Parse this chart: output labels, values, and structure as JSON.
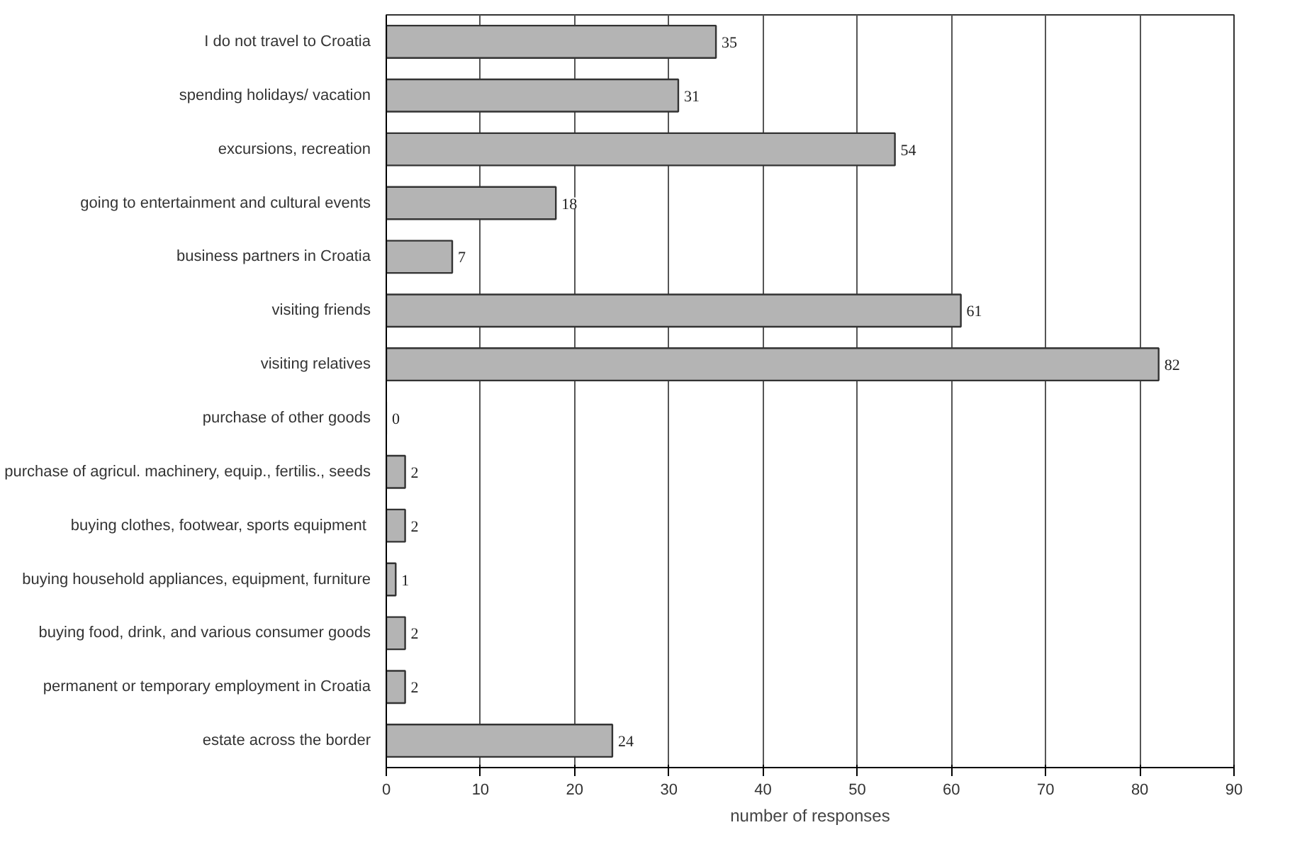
{
  "chart_data": {
    "type": "bar",
    "orientation": "horizontal",
    "xlabel": "number of responses",
    "categories": [
      "I do not travel to Croatia",
      "spending holidays/ vacation",
      "excursions, recreation",
      "going to entertainment and cultural events",
      "business partners in Croatia",
      "visiting friends",
      "visiting relatives",
      "purchase of other goods",
      "purchase of agricul. machinery, equip., fertilis., seeds",
      "buying  clothes, footwear, sports equipment",
      "buying household appliances, equipment, furniture",
      "buying food, drink, and various consumer goods",
      "permanent or temporary employment in Croatia",
      "estate across the border"
    ],
    "values": [
      35,
      31,
      54,
      18,
      7,
      61,
      82,
      0,
      2,
      2,
      1,
      2,
      2,
      24
    ],
    "color": "#b4b4b4",
    "xlim": [
      0,
      90
    ],
    "xticks": [
      0,
      10,
      20,
      30,
      40,
      50,
      60,
      70,
      80,
      90
    ],
    "grid": "x",
    "data_labels": true
  }
}
